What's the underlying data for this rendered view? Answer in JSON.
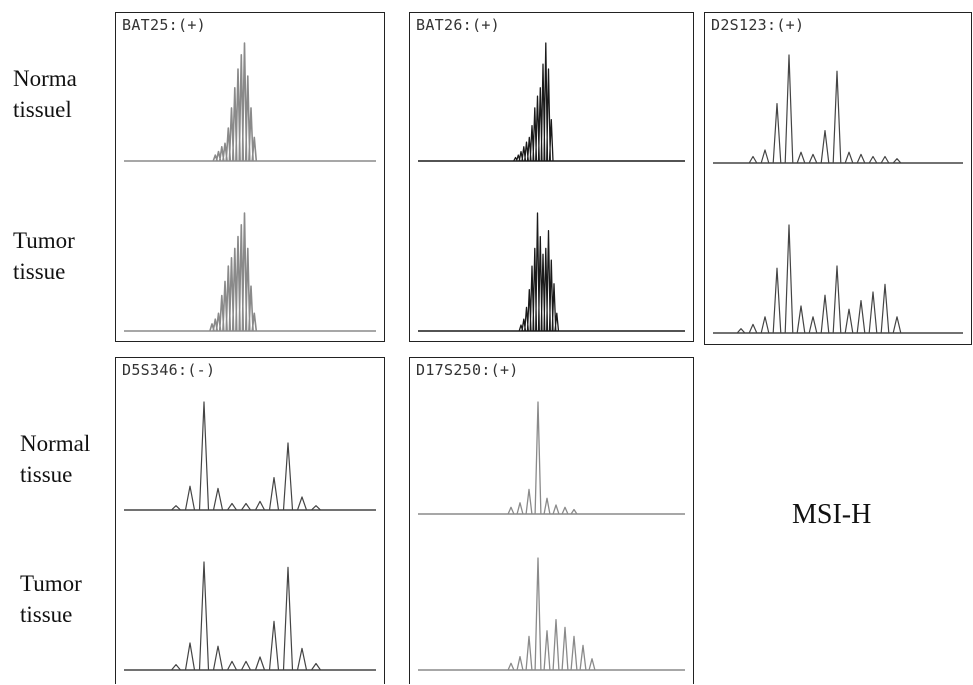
{
  "row_labels": [
    {
      "line1": "Norma",
      "line2": "tissuel"
    },
    {
      "line1": "Tumor",
      "line2": "tissue"
    },
    {
      "line1": "Normal",
      "line2": "tissue"
    },
    {
      "line1": "Tumor",
      "line2": "tissue"
    }
  ],
  "panels": [
    {
      "title": "BAT25:(+)",
      "traces": [
        {
          "tissue": "normal",
          "peaks": [
            [
              -3.5,
              0.05
            ],
            [
              -3,
              0.08
            ],
            [
              -2.5,
              0.12
            ],
            [
              -2,
              0.15
            ],
            [
              -1.5,
              0.28
            ],
            [
              -1,
              0.45
            ],
            [
              -0.5,
              0.62
            ],
            [
              0,
              0.78
            ],
            [
              0.5,
              0.9
            ],
            [
              1,
              1.0
            ],
            [
              1.5,
              0.72
            ],
            [
              2,
              0.45
            ],
            [
              2.5,
              0.2
            ]
          ]
        },
        {
          "tissue": "tumor",
          "peaks": [
            [
              -4,
              0.06
            ],
            [
              -3.5,
              0.1
            ],
            [
              -3,
              0.15
            ],
            [
              -2.5,
              0.3
            ],
            [
              -2,
              0.42
            ],
            [
              -1.5,
              0.55
            ],
            [
              -1,
              0.62
            ],
            [
              -0.5,
              0.7
            ],
            [
              0,
              0.8
            ],
            [
              0.5,
              0.9
            ],
            [
              1,
              1.0
            ],
            [
              1.5,
              0.7
            ],
            [
              2,
              0.38
            ],
            [
              2.5,
              0.15
            ]
          ]
        }
      ]
    },
    {
      "title": "BAT26:(+)",
      "traces": [
        {
          "tissue": "normal",
          "peaks": [
            [
              -5,
              0.03
            ],
            [
              -4.5,
              0.05
            ],
            [
              -4,
              0.08
            ],
            [
              -3.5,
              0.12
            ],
            [
              -3,
              0.16
            ],
            [
              -2.5,
              0.2
            ],
            [
              -2,
              0.3
            ],
            [
              -1.5,
              0.45
            ],
            [
              -1,
              0.55
            ],
            [
              -0.5,
              0.62
            ],
            [
              0,
              0.82
            ],
            [
              0.5,
              1.0
            ],
            [
              1,
              0.78
            ],
            [
              1.5,
              0.35
            ]
          ]
        },
        {
          "tissue": "tumor",
          "peaks": [
            [
              -4,
              0.05
            ],
            [
              -3.5,
              0.1
            ],
            [
              -3,
              0.2
            ],
            [
              -2.5,
              0.35
            ],
            [
              -2,
              0.55
            ],
            [
              -1.5,
              0.7
            ],
            [
              -1,
              1.0
            ],
            [
              -0.5,
              0.8
            ],
            [
              0,
              0.65
            ],
            [
              0.5,
              0.7
            ],
            [
              1,
              0.85
            ],
            [
              1.5,
              0.6
            ],
            [
              2,
              0.4
            ],
            [
              2.5,
              0.15
            ]
          ]
        }
      ]
    },
    {
      "title": "D2S123:(+)",
      "traces": [
        {
          "tissue": "normal",
          "peaks": [
            [
              -6,
              0.06
            ],
            [
              -5,
              0.12
            ],
            [
              -4,
              0.55
            ],
            [
              -3,
              1.0
            ],
            [
              -2,
              0.1
            ],
            [
              -1,
              0.08
            ],
            [
              0,
              0.3
            ],
            [
              1,
              0.85
            ],
            [
              2,
              0.1
            ],
            [
              3,
              0.08
            ],
            [
              4,
              0.06
            ],
            [
              5,
              0.06
            ],
            [
              6,
              0.04
            ]
          ]
        },
        {
          "tissue": "tumor",
          "peaks": [
            [
              -7,
              0.04
            ],
            [
              -6,
              0.08
            ],
            [
              -5,
              0.15
            ],
            [
              -4,
              0.6
            ],
            [
              -3,
              1.0
            ],
            [
              -2,
              0.25
            ],
            [
              -1,
              0.15
            ],
            [
              0,
              0.35
            ],
            [
              1,
              0.62
            ],
            [
              2,
              0.22
            ],
            [
              3,
              0.3
            ],
            [
              4,
              0.38
            ],
            [
              5,
              0.45
            ],
            [
              6,
              0.15
            ]
          ]
        }
      ]
    },
    {
      "title": "D5S346:(-)",
      "traces": [
        {
          "tissue": "normal",
          "peaks": [
            [
              -5,
              0.04
            ],
            [
              -4,
              0.22
            ],
            [
              -3,
              1.0
            ],
            [
              -2,
              0.2
            ],
            [
              -1,
              0.06
            ],
            [
              0,
              0.06
            ],
            [
              1,
              0.08
            ],
            [
              2,
              0.3
            ],
            [
              3,
              0.62
            ],
            [
              4,
              0.12
            ],
            [
              5,
              0.04
            ]
          ]
        },
        {
          "tissue": "tumor",
          "peaks": [
            [
              -5,
              0.05
            ],
            [
              -4,
              0.25
            ],
            [
              -3,
              1.0
            ],
            [
              -2,
              0.22
            ],
            [
              -1,
              0.08
            ],
            [
              0,
              0.08
            ],
            [
              1,
              0.12
            ],
            [
              2,
              0.45
            ],
            [
              3,
              0.95
            ],
            [
              4,
              0.2
            ],
            [
              5,
              0.06
            ]
          ]
        }
      ]
    },
    {
      "title": "D17S250:(+)",
      "traces": [
        {
          "tissue": "normal",
          "peaks": [
            [
              -3,
              0.06
            ],
            [
              -2,
              0.1
            ],
            [
              -1,
              0.22
            ],
            [
              0,
              1.0
            ],
            [
              1,
              0.14
            ],
            [
              2,
              0.08
            ],
            [
              3,
              0.06
            ],
            [
              4,
              0.04
            ]
          ]
        },
        {
          "tissue": "tumor",
          "peaks": [
            [
              -3,
              0.06
            ],
            [
              -2,
              0.12
            ],
            [
              -1,
              0.3
            ],
            [
              0,
              1.0
            ],
            [
              1,
              0.35
            ],
            [
              2,
              0.45
            ],
            [
              3,
              0.38
            ],
            [
              4,
              0.3
            ],
            [
              5,
              0.22
            ],
            [
              6,
              0.1
            ]
          ]
        }
      ]
    }
  ],
  "verdict": "MSI-H"
}
